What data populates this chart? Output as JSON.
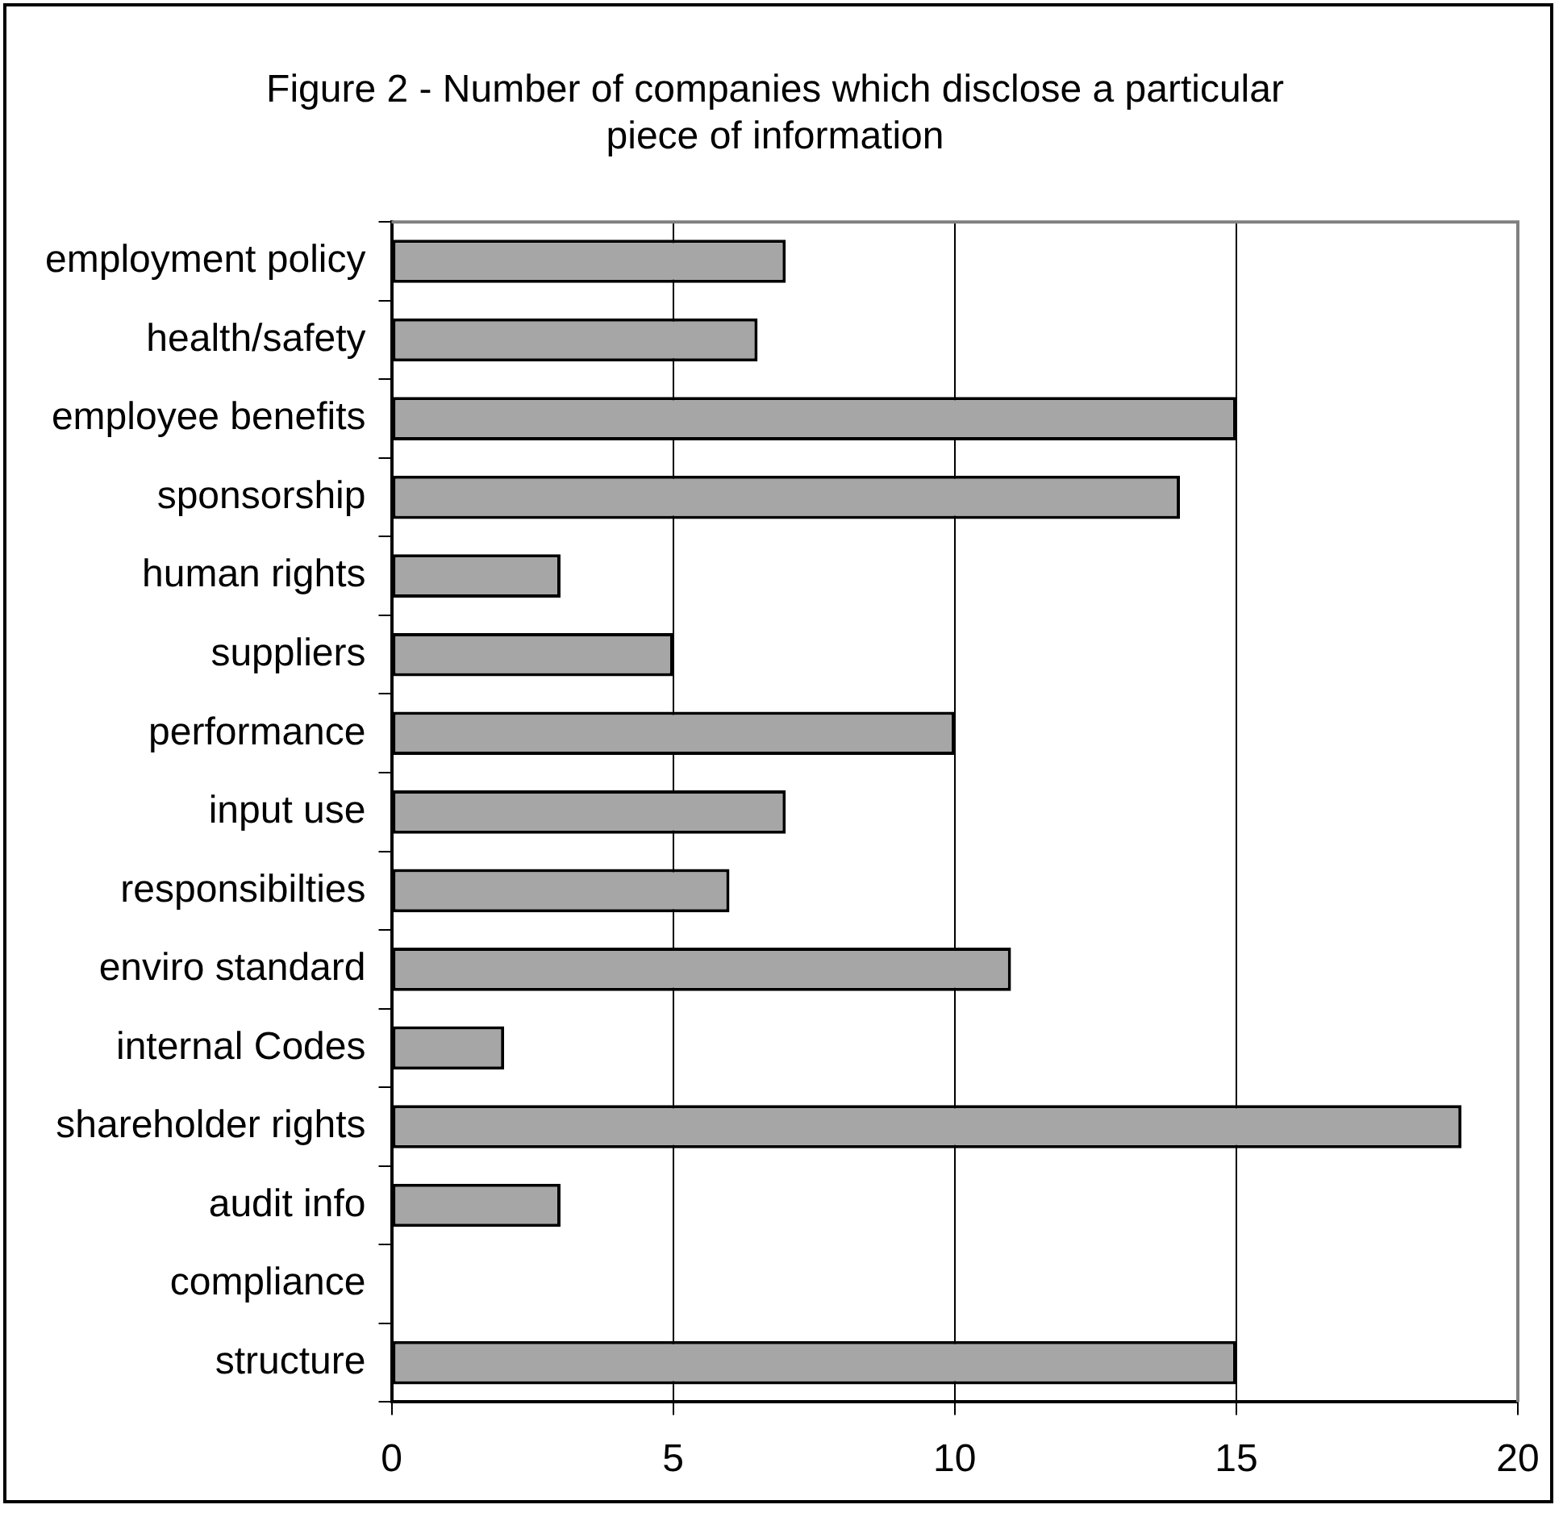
{
  "chart_data": {
    "type": "bar",
    "orientation": "horizontal",
    "title": "Figure 2 - Number of companies which disclose a particular piece of information",
    "categories": [
      "employment policy",
      "health/safety",
      "employee benefits",
      "sponsorship",
      "human rights",
      "suppliers",
      "performance",
      "input use",
      "responsibilties",
      "enviro standard",
      "internal Codes",
      "shareholder rights",
      "audit info",
      "compliance",
      "structure"
    ],
    "values": [
      7,
      6.5,
      15,
      14,
      3,
      5,
      10,
      7,
      6,
      11,
      2,
      19,
      3,
      0,
      15
    ],
    "color": "#a6a6a6",
    "xlim": [
      0,
      20
    ],
    "xticks": [
      0,
      5,
      10,
      15,
      20
    ],
    "grid": "x",
    "legend": false
  }
}
